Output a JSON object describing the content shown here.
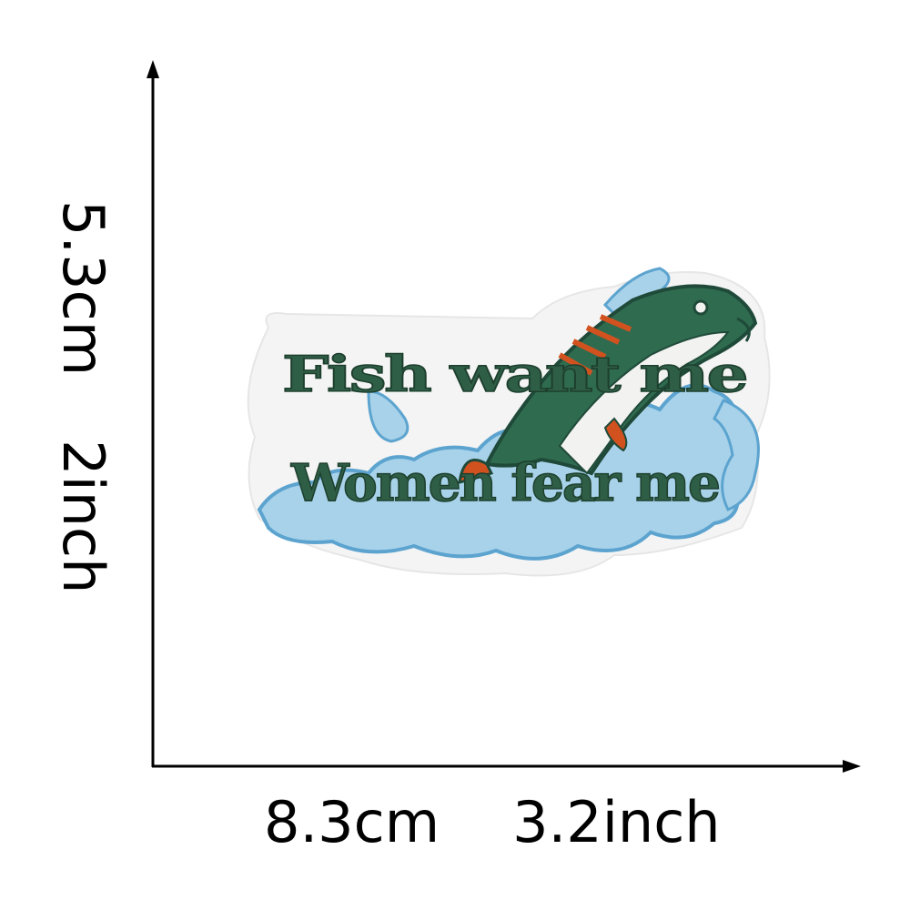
{
  "dimensions": {
    "width_cm": "8.3cm",
    "width_inch": "3.2inch",
    "height_cm": "5.3cm",
    "height_inch": "2inch"
  },
  "patch": {
    "line1": "Fish want me",
    "line2": "Women fear me"
  },
  "colors": {
    "axis": "#000000",
    "text_green": "#2f5e46",
    "water_blue": "#a8d2ea",
    "water_outline": "#5ca4cf",
    "fish_dark": "#1f4a3a",
    "fish_orange": "#d2521f",
    "patch_border": "#f4f4f4"
  }
}
